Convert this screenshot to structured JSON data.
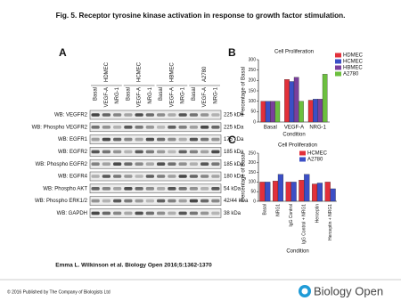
{
  "title": "Fig. 5. Receptor tyrosine kinase activation in response to growth factor stimulation.",
  "panel_a": {
    "label": "A",
    "cell_lines": [
      "HDMEC",
      "HCMEC",
      "HBMEC",
      "A2780"
    ],
    "lanes": [
      "Basal",
      "VEGF-A",
      "NRG-1"
    ],
    "blots": [
      {
        "name": "WB: VEGFR2",
        "size": "225 kDa"
      },
      {
        "name": "WB: Phospho VEGFR2",
        "size": "225 kDa"
      },
      {
        "name": "WB: EGFR1",
        "size": "175 kDa"
      },
      {
        "name": "WB: EGFR2",
        "size": "185 kDa"
      },
      {
        "name": "WB: Phospho EGFR2",
        "size": "185 kDa"
      },
      {
        "name": "WB: EGFR4",
        "size": "180 kDa"
      },
      {
        "name": "WB: Phospho AKT",
        "size": "54 kDa"
      },
      {
        "name": "WB: Phospho ERK1/2",
        "size": "42/44 kDa"
      },
      {
        "name": "WB: GAPDH",
        "size": "38 kDa"
      }
    ]
  },
  "panel_b": {
    "label": "B",
    "chart_data": {
      "type": "bar",
      "title": "Cell Proliferation",
      "x_label": "Condition",
      "y_label": "Percentage of Basal",
      "categories": [
        "Basal",
        "VEGF-A",
        "NRG-1"
      ],
      "series": [
        {
          "name": "HDMEC",
          "color": "#e2303a",
          "values": [
            100,
            205,
            105
          ]
        },
        {
          "name": "HCMEC",
          "color": "#3b4fc6",
          "values": [
            100,
            195,
            110
          ]
        },
        {
          "name": "HBMEC",
          "color": "#7a3f9c",
          "values": [
            100,
            215,
            110
          ]
        },
        {
          "name": "A2780",
          "color": "#6cbf3f",
          "values": [
            100,
            100,
            230
          ]
        }
      ],
      "ylim": [
        0,
        300
      ],
      "yticks": [
        0,
        50,
        100,
        150,
        200,
        250,
        300
      ],
      "legend": "right",
      "rotate_x": false
    }
  },
  "panel_c": {
    "label": "C",
    "chart_data": {
      "type": "bar",
      "title": "Cell Proliferation",
      "x_label": "Condition",
      "y_label": "Percentage of Basal",
      "categories": [
        "Basal",
        "NRG1",
        "IgG Control",
        "IgG Control + NRG1",
        "Herceptin",
        "Herceptin + NRG1"
      ],
      "series": [
        {
          "name": "HCMEC",
          "color": "#e2303a",
          "values": [
            100,
            105,
            100,
            110,
            90,
            100
          ]
        },
        {
          "name": "A2780",
          "color": "#3b4fc6",
          "values": [
            100,
            140,
            100,
            140,
            95,
            65
          ]
        }
      ],
      "ylim": [
        0,
        250
      ],
      "yticks": [
        0,
        50,
        100,
        150,
        200,
        250
      ],
      "legend": "top-right",
      "rotate_x": true
    }
  },
  "citation": "Emma L. Wilkinson et al. Biology Open 2016;5:1362-1370",
  "footer": {
    "copyright": "© 2016 Published by The Company of Biologists Ltd",
    "logo": "Biology Open"
  }
}
